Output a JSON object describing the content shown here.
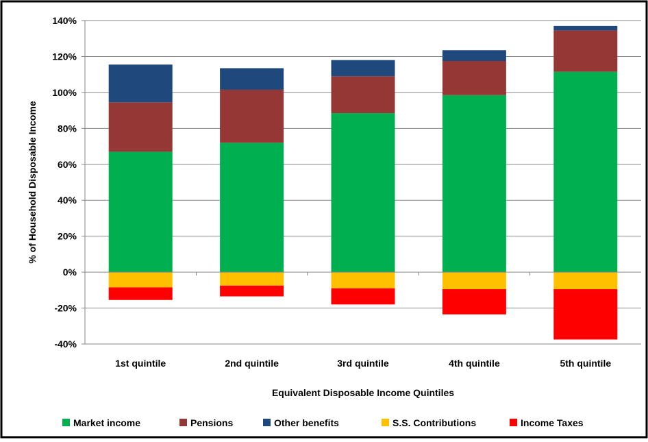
{
  "chart_data": {
    "type": "bar",
    "stacked": true,
    "title": "",
    "xlabel": "Equivalent Disposable Income Quintiles",
    "ylabel": "% of Household Disposable Income",
    "ylim": [
      -40,
      140
    ],
    "yticks": [
      -40,
      -20,
      0,
      20,
      40,
      60,
      80,
      100,
      120,
      140
    ],
    "ytick_labels": [
      "-40%",
      "-20%",
      "0%",
      "20%",
      "40%",
      "60%",
      "80%",
      "100%",
      "120%",
      "140%"
    ],
    "grid": "horizontal",
    "legend_position": "bottom",
    "categories": [
      "1st quintile",
      "2nd quintile",
      "3rd quintile",
      "4th quintile",
      "5th quintile"
    ],
    "series": [
      {
        "name": "Market income",
        "color": "#00b050",
        "values": [
          67,
          72,
          88.5,
          98.5,
          111.5
        ]
      },
      {
        "name": "Pensions",
        "color": "#953735",
        "values": [
          27.5,
          29.5,
          20.5,
          19,
          23
        ]
      },
      {
        "name": "Other benefits",
        "color": "#1f497d",
        "values": [
          21,
          12,
          9,
          6,
          2.5
        ]
      },
      {
        "name": "S.S. Contributions",
        "color": "#ffc000",
        "values": [
          -8.5,
          -7.5,
          -9,
          -9.5,
          -9.5
        ]
      },
      {
        "name": "Income Taxes",
        "color": "#ff0000",
        "values": [
          -7,
          -6,
          -9,
          -14,
          -28
        ]
      }
    ]
  }
}
